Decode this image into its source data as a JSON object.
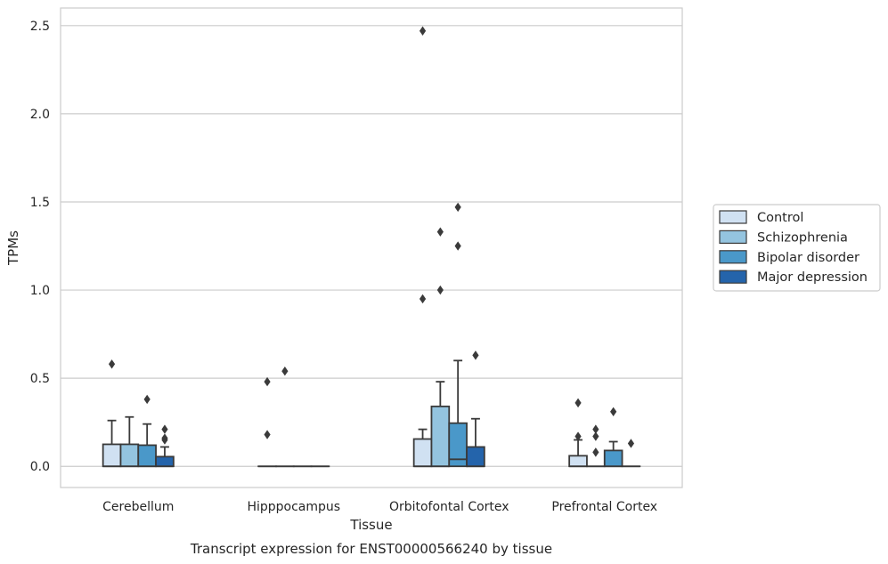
{
  "chart_data": {
    "type": "box",
    "title": "Transcript expression for ENST00000566240 by tissue",
    "xlabel": "Tissue",
    "ylabel": "TPMs",
    "ylim": [
      -0.12,
      2.6
    ],
    "yticks": [
      0.0,
      0.5,
      1.0,
      1.5,
      2.0,
      2.5
    ],
    "ytick_labels": [
      "0.0",
      "0.5",
      "1.0",
      "1.5",
      "2.0",
      "2.5"
    ],
    "grid": true,
    "legend_position": "right",
    "categories": [
      "Cerebellum",
      "Hipppocampus",
      "Orbitofontal Cortex",
      "Prefrontal Cortex"
    ],
    "series": [
      {
        "name": "Control",
        "color": "#d0e1f2",
        "boxes": [
          {
            "q1": 0.0,
            "median": 0.0,
            "q3": 0.125,
            "whisker_low": 0.0,
            "whisker_high": 0.26,
            "outliers": [
              0.58
            ]
          },
          {
            "q1": 0.0,
            "median": 0.0,
            "q3": 0.0,
            "whisker_low": 0.0,
            "whisker_high": 0.0,
            "outliers": [
              0.18,
              0.48
            ]
          },
          {
            "q1": 0.0,
            "median": 0.0,
            "q3": 0.155,
            "whisker_low": 0.0,
            "whisker_high": 0.21,
            "outliers": [
              0.95,
              2.47
            ]
          },
          {
            "q1": 0.0,
            "median": 0.0,
            "q3": 0.06,
            "whisker_low": 0.0,
            "whisker_high": 0.15,
            "outliers": [
              0.17,
              0.36
            ]
          }
        ]
      },
      {
        "name": "Schizophrenia",
        "color": "#94c4df",
        "boxes": [
          {
            "q1": 0.0,
            "median": 0.0,
            "q3": 0.125,
            "whisker_low": 0.0,
            "whisker_high": 0.28,
            "outliers": []
          },
          {
            "q1": 0.0,
            "median": 0.0,
            "q3": 0.0,
            "whisker_low": 0.0,
            "whisker_high": 0.0,
            "outliers": [
              0.54
            ]
          },
          {
            "q1": 0.0,
            "median": 0.0,
            "q3": 0.34,
            "whisker_low": 0.0,
            "whisker_high": 0.48,
            "outliers": [
              1.0,
              1.33
            ]
          },
          {
            "q1": 0.0,
            "median": 0.0,
            "q3": 0.0,
            "whisker_low": 0.0,
            "whisker_high": 0.0,
            "outliers": [
              0.08,
              0.17,
              0.21
            ]
          }
        ]
      },
      {
        "name": "Bipolar disorder",
        "color": "#4a98c9",
        "boxes": [
          {
            "q1": 0.0,
            "median": 0.0,
            "q3": 0.12,
            "whisker_low": 0.0,
            "whisker_high": 0.24,
            "outliers": [
              0.38
            ]
          },
          {
            "q1": 0.0,
            "median": 0.0,
            "q3": 0.0,
            "whisker_low": 0.0,
            "whisker_high": 0.0,
            "outliers": []
          },
          {
            "q1": 0.0,
            "median": 0.04,
            "q3": 0.245,
            "whisker_low": 0.0,
            "whisker_high": 0.6,
            "outliers": [
              1.25,
              1.47
            ]
          },
          {
            "q1": 0.0,
            "median": 0.0,
            "q3": 0.09,
            "whisker_low": 0.0,
            "whisker_high": 0.14,
            "outliers": [
              0.31
            ]
          }
        ]
      },
      {
        "name": "Major depression",
        "color": "#2464ab",
        "boxes": [
          {
            "q1": 0.0,
            "median": 0.0,
            "q3": 0.055,
            "whisker_low": 0.0,
            "whisker_high": 0.11,
            "outliers": [
              0.15,
              0.16,
              0.21
            ]
          },
          {
            "q1": 0.0,
            "median": 0.0,
            "q3": 0.0,
            "whisker_low": 0.0,
            "whisker_high": 0.0,
            "outliers": []
          },
          {
            "q1": 0.0,
            "median": 0.0,
            "q3": 0.11,
            "whisker_low": 0.0,
            "whisker_high": 0.27,
            "outliers": [
              0.63
            ]
          },
          {
            "q1": 0.0,
            "median": 0.0,
            "q3": 0.0,
            "whisker_low": 0.0,
            "whisker_high": 0.0,
            "outliers": [
              0.13
            ]
          }
        ]
      }
    ],
    "colors": {
      "grid": "#cccccc",
      "frame": "#cccccc",
      "stroke": "#3a3a3a"
    }
  }
}
